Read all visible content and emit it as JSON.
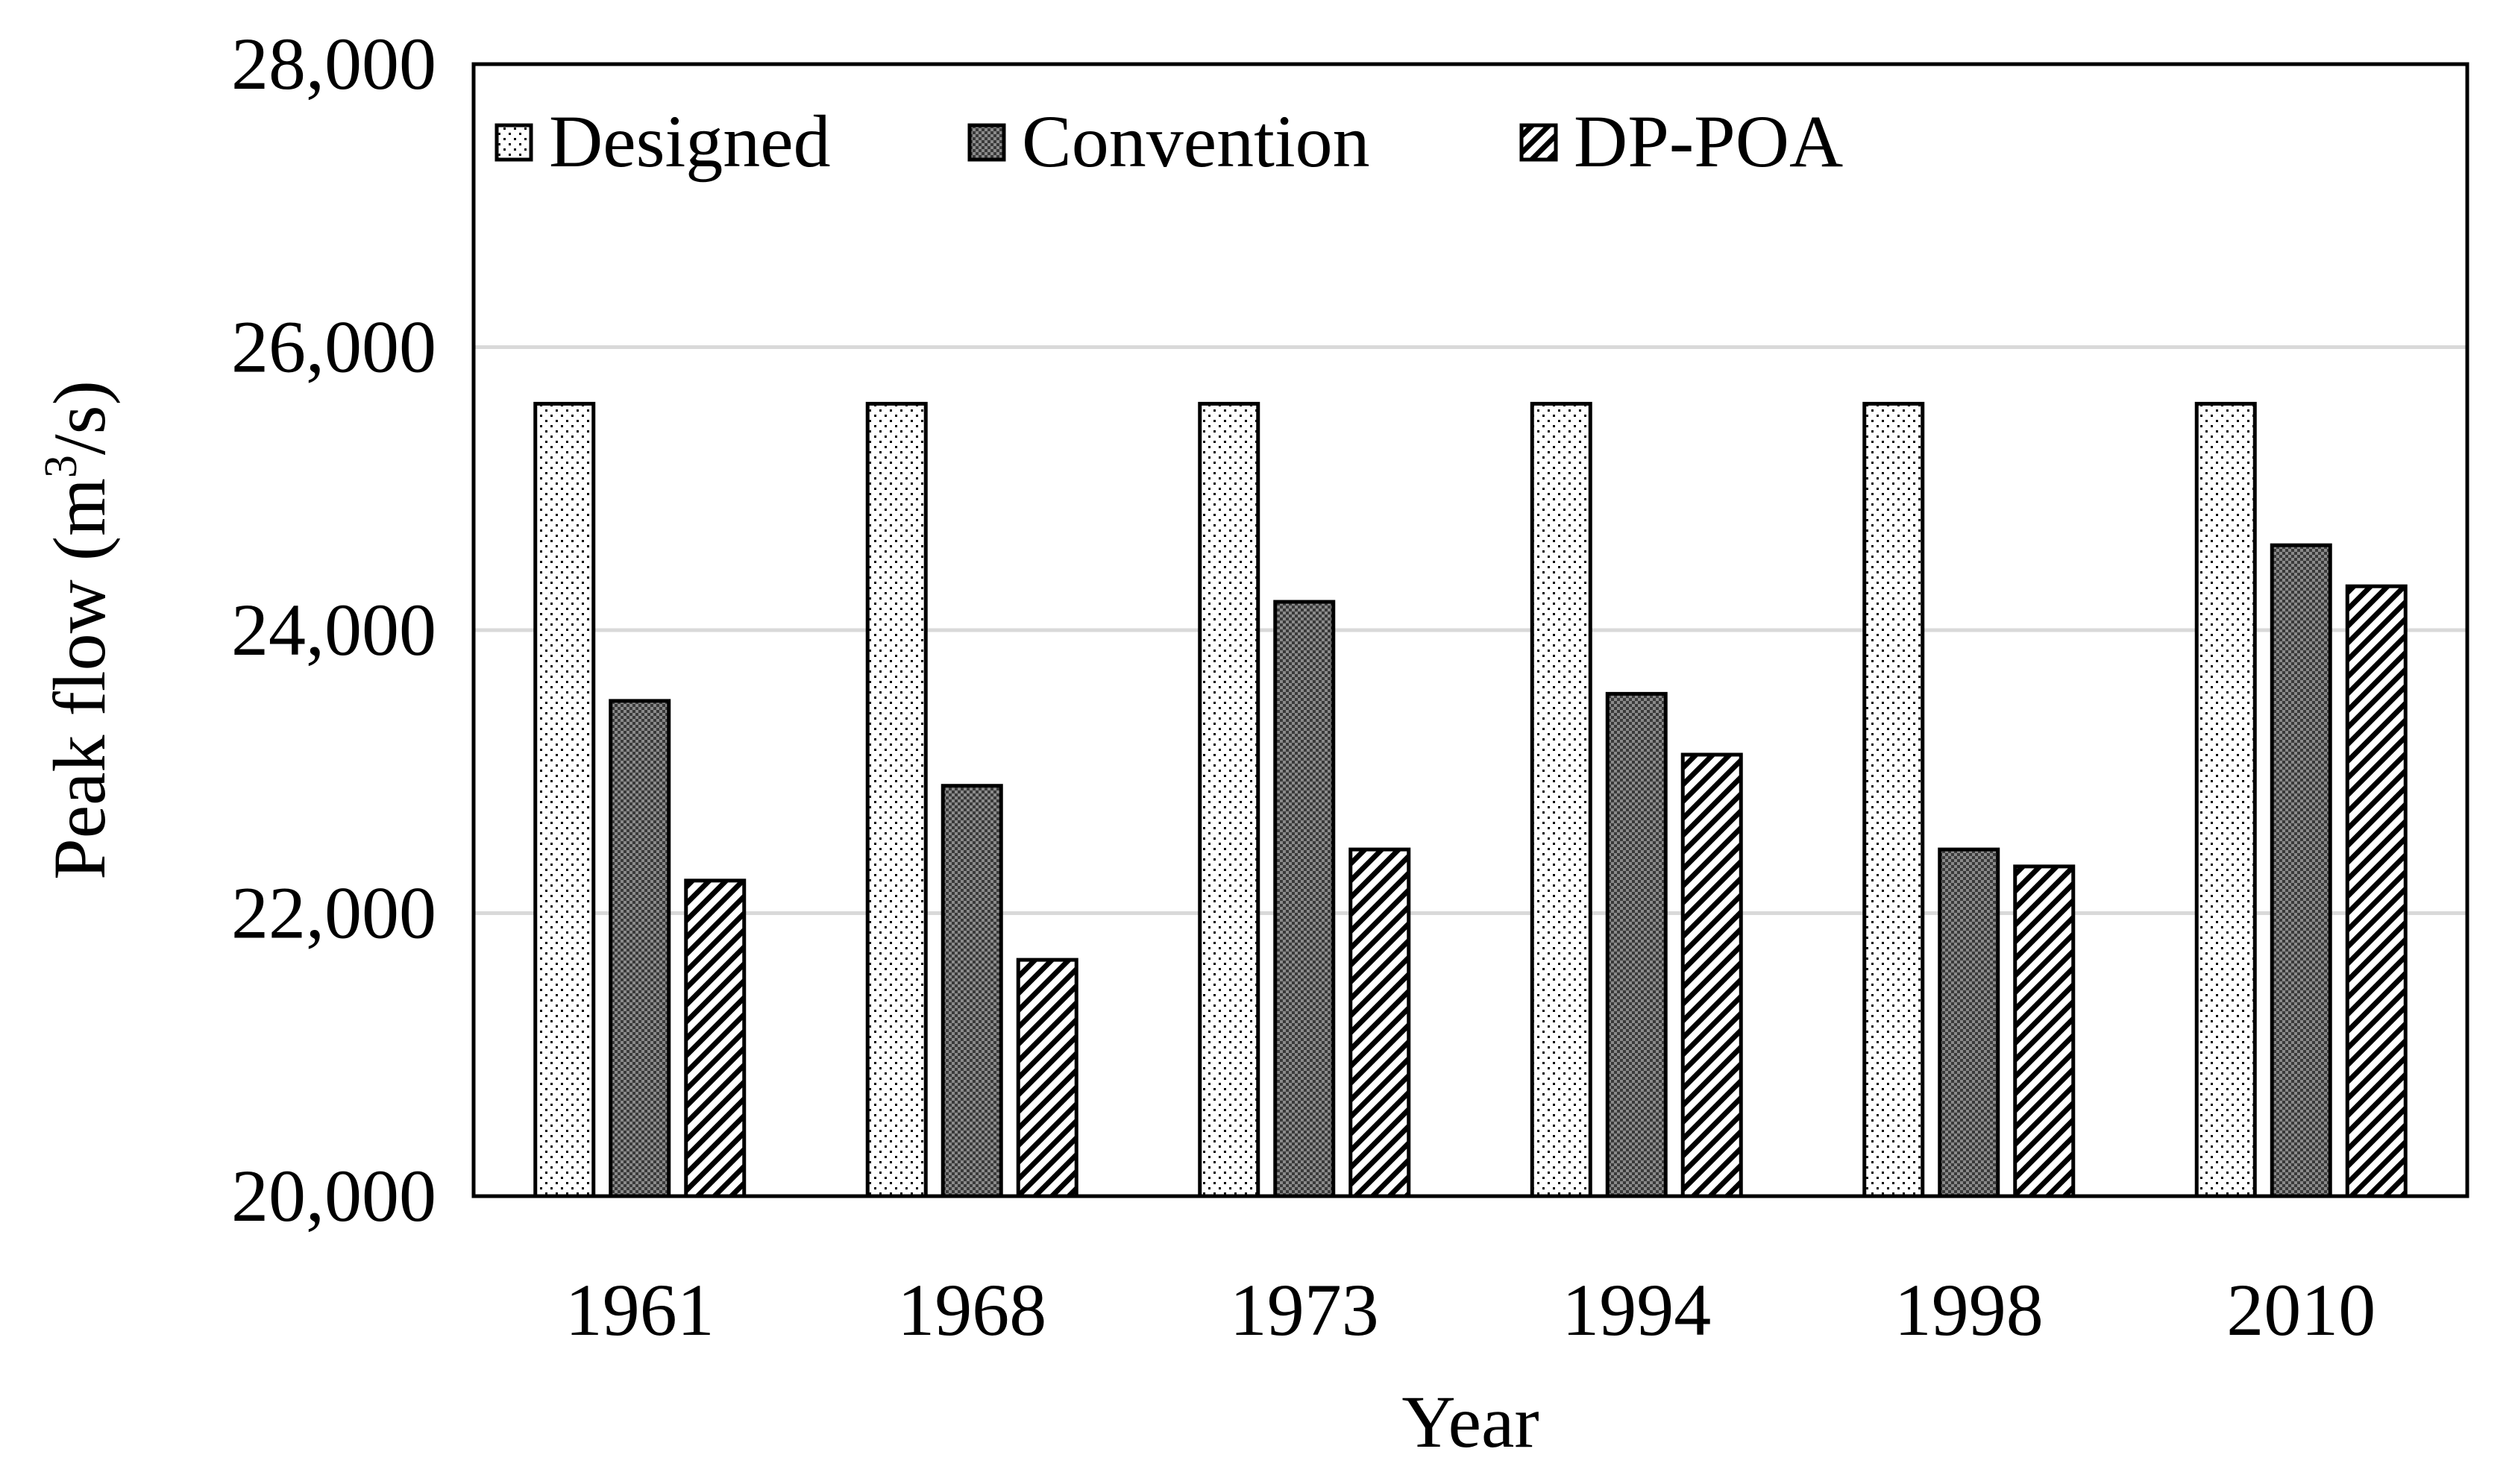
{
  "chart_data": {
    "type": "bar",
    "title": "",
    "xlabel": "Year",
    "ylabel": "Peak flow (m",
    "ylabel_superscript": "3",
    "ylabel_suffix": "/s)",
    "ylim": [
      20000,
      28000
    ],
    "yticks": [
      20000,
      22000,
      24000,
      26000,
      28000
    ],
    "ytick_labels": [
      "20,000",
      "22,000",
      "24,000",
      "26,000",
      "28,000"
    ],
    "grid": true,
    "legend_position": "top-left",
    "categories": [
      "1961",
      "1968",
      "1973",
      "1994",
      "1998",
      "2010"
    ],
    "series": [
      {
        "name": "Designed",
        "pattern": "dots",
        "values": [
          25600,
          25600,
          25600,
          25600,
          25600,
          25600
        ]
      },
      {
        "name": "Convention",
        "pattern": "checker",
        "values": [
          23500,
          22900,
          24200,
          23550,
          22450,
          24600
        ]
      },
      {
        "name": "DP-POA",
        "pattern": "diagonal",
        "values": [
          22230,
          21670,
          22450,
          23120,
          22330,
          24310
        ]
      }
    ]
  }
}
